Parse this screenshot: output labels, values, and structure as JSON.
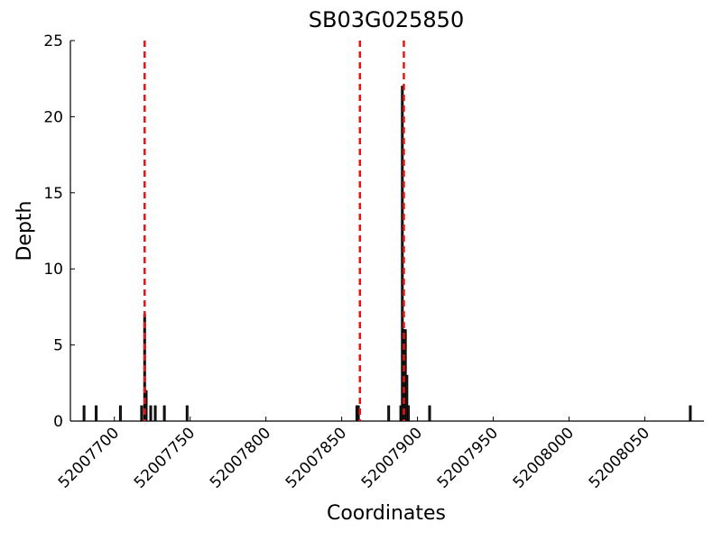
{
  "chart_data": {
    "type": "bar",
    "title": "SB03G025850",
    "x_label": "Coordinates",
    "y_label": "Depth",
    "x": [
      52007680,
      52007688,
      52007704,
      52007718,
      52007720,
      52007721,
      52007724,
      52007727,
      52007733,
      52007748,
      52007860,
      52007861,
      52007881,
      52007889,
      52007890,
      52007891,
      52007892,
      52007893,
      52007894,
      52007908,
      52008080
    ],
    "values": [
      1,
      1,
      1,
      1,
      7,
      2,
      1,
      1,
      1,
      1,
      1,
      1,
      1,
      1,
      22,
      6,
      6,
      3,
      1,
      1,
      1
    ],
    "color": "#222222",
    "vlines": [
      52007720,
      52007862,
      52007891
    ],
    "vline_color": "#ee1111",
    "xlim": [
      52007671,
      52008089
    ],
    "ylim": [
      0,
      25
    ],
    "xticks": [
      52007700,
      52007750,
      52007800,
      52007850,
      52007900,
      52007950,
      52008000,
      52008050
    ],
    "yticks": [
      0,
      5,
      10,
      15,
      20,
      25
    ]
  }
}
